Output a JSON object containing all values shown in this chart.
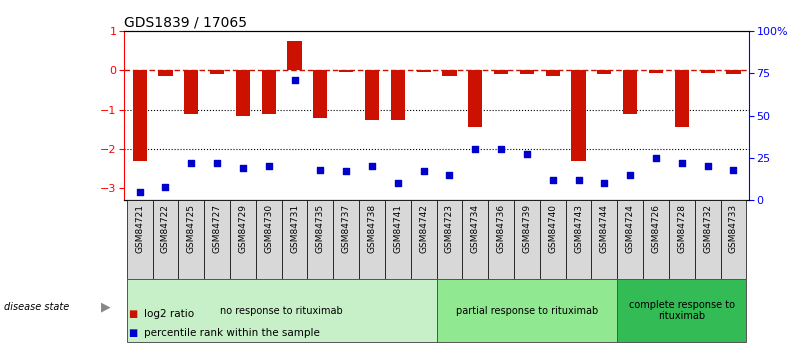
{
  "title": "GDS1839 / 17065",
  "samples": [
    "GSM84721",
    "GSM84722",
    "GSM84725",
    "GSM84727",
    "GSM84729",
    "GSM84730",
    "GSM84731",
    "GSM84735",
    "GSM84737",
    "GSM84738",
    "GSM84741",
    "GSM84742",
    "GSM84723",
    "GSM84734",
    "GSM84736",
    "GSM84739",
    "GSM84740",
    "GSM84743",
    "GSM84744",
    "GSM84724",
    "GSM84726",
    "GSM84728",
    "GSM84732",
    "GSM84733"
  ],
  "log2_ratio": [
    -2.3,
    -0.14,
    -1.1,
    -0.1,
    -1.15,
    -1.1,
    0.75,
    -1.2,
    -0.05,
    -1.25,
    -1.25,
    -0.05,
    -0.14,
    -1.45,
    -0.1,
    -0.1,
    -0.14,
    -2.3,
    -0.1,
    -1.1,
    -0.07,
    -1.45,
    -0.07,
    -0.1
  ],
  "percentile": [
    5,
    8,
    22,
    22,
    19,
    20,
    71,
    18,
    17,
    20,
    10,
    17,
    15,
    30,
    30,
    27,
    12,
    12,
    10,
    15,
    25,
    22,
    20,
    18
  ],
  "groups": [
    {
      "label": "no response to rituximab",
      "start": 0,
      "end": 12,
      "color": "#c8f0c8"
    },
    {
      "label": "partial response to rituximab",
      "start": 12,
      "end": 19,
      "color": "#90e890"
    },
    {
      "label": "complete response to\nrituximab",
      "start": 19,
      "end": 24,
      "color": "#33bb55"
    }
  ],
  "bar_color": "#cc1100",
  "dot_color": "#0000cc",
  "ylim_left": [
    -3.3,
    1.0
  ],
  "ylim_right": [
    0,
    100
  ],
  "left_yticks": [
    -3,
    -2,
    -1,
    0,
    1
  ],
  "right_yticks": [
    0,
    25,
    50,
    75,
    100
  ],
  "right_yticklabels": [
    "0",
    "25",
    "50",
    "75",
    "100%"
  ],
  "legend_items": [
    {
      "label": "log2 ratio",
      "color": "#cc1100"
    },
    {
      "label": "percentile rank within the sample",
      "color": "#0000cc"
    }
  ],
  "disease_state_label": "disease state"
}
